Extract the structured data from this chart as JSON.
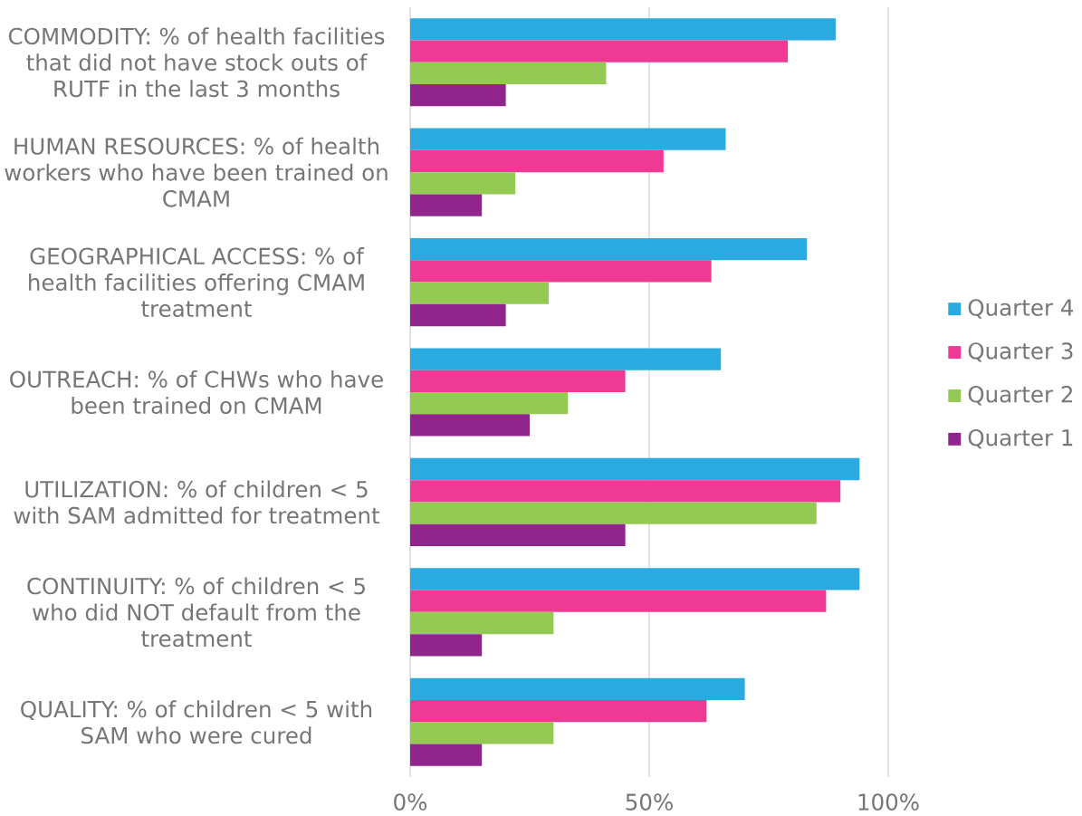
{
  "chart_data": {
    "type": "bar",
    "orientation": "horizontal",
    "categories": [
      "COMMODITY: % of health facilities that did not have stock outs of RUTF in the last 3 months",
      "HUMAN RESOURCES: % of health workers who have been trained on CMAM",
      "GEOGRAPHICAL ACCESS: % of health facilities offering CMAM treatment",
      "OUTREACH: % of CHWs who have been trained on CMAM",
      "UTILIZATION: % of children < 5 with SAM admitted for treatment",
      "CONTINUITY: % of children < 5 who did NOT default from the treatment",
      "QUALITY: % of children < 5 with SAM who were cured"
    ],
    "series": [
      {
        "name": "Quarter 4",
        "color": "#29abe2",
        "values": [
          89,
          66,
          83,
          65,
          94,
          94,
          70
        ]
      },
      {
        "name": "Quarter 3",
        "color": "#ee3a94",
        "values": [
          79,
          53,
          63,
          45,
          90,
          87,
          62
        ]
      },
      {
        "name": "Quarter 2",
        "color": "#94c954",
        "values": [
          41,
          22,
          29,
          33,
          85,
          30,
          30
        ]
      },
      {
        "name": "Quarter 1",
        "color": "#90268c",
        "values": [
          20,
          15,
          20,
          25,
          45,
          15,
          15
        ]
      }
    ],
    "xlim": [
      0,
      100
    ],
    "xticks": [
      {
        "value": 0,
        "label": "0%"
      },
      {
        "value": 50,
        "label": "50%"
      },
      {
        "value": 100,
        "label": "100%"
      }
    ],
    "grid": "x",
    "legend": "right"
  }
}
